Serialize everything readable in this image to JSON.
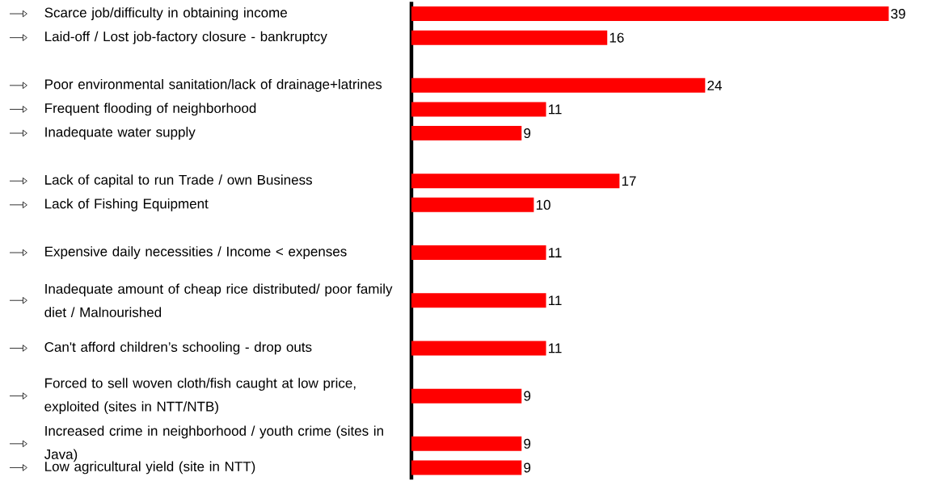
{
  "chart_data": {
    "type": "bar",
    "orientation": "horizontal",
    "tick_labels": "y",
    "data_labels": true,
    "color": "#ff0000",
    "categories": [
      "Scarce job/difficulty in obtaining income",
      "Laid-off / Lost job-factory closure - bankruptcy",
      null,
      "Poor environmental sanitation/lack of drainage+latrines",
      "Frequent flooding of neighborhood",
      "Inadequate water supply",
      null,
      "Lack of capital to run Trade / own Business",
      "Lack of Fishing Equipment",
      null,
      "Expensive daily necessities / Income < expenses",
      null,
      "Inadequate amount of cheap rice distributed/ poor family diet / Malnourished",
      null,
      "Can't afford children’s schooling - drop outs",
      null,
      "Forced to sell woven cloth/fish caught at low price, exploited (sites in NTT/NTB)",
      null,
      "Increased crime in neighborhood / youth crime (sites in Java)",
      "Low agricultural yield (site in NTT)"
    ],
    "values": [
      39,
      16,
      null,
      24,
      11,
      9,
      null,
      17,
      10,
      null,
      11,
      null,
      11,
      null,
      11,
      null,
      9,
      null,
      9,
      9
    ]
  }
}
